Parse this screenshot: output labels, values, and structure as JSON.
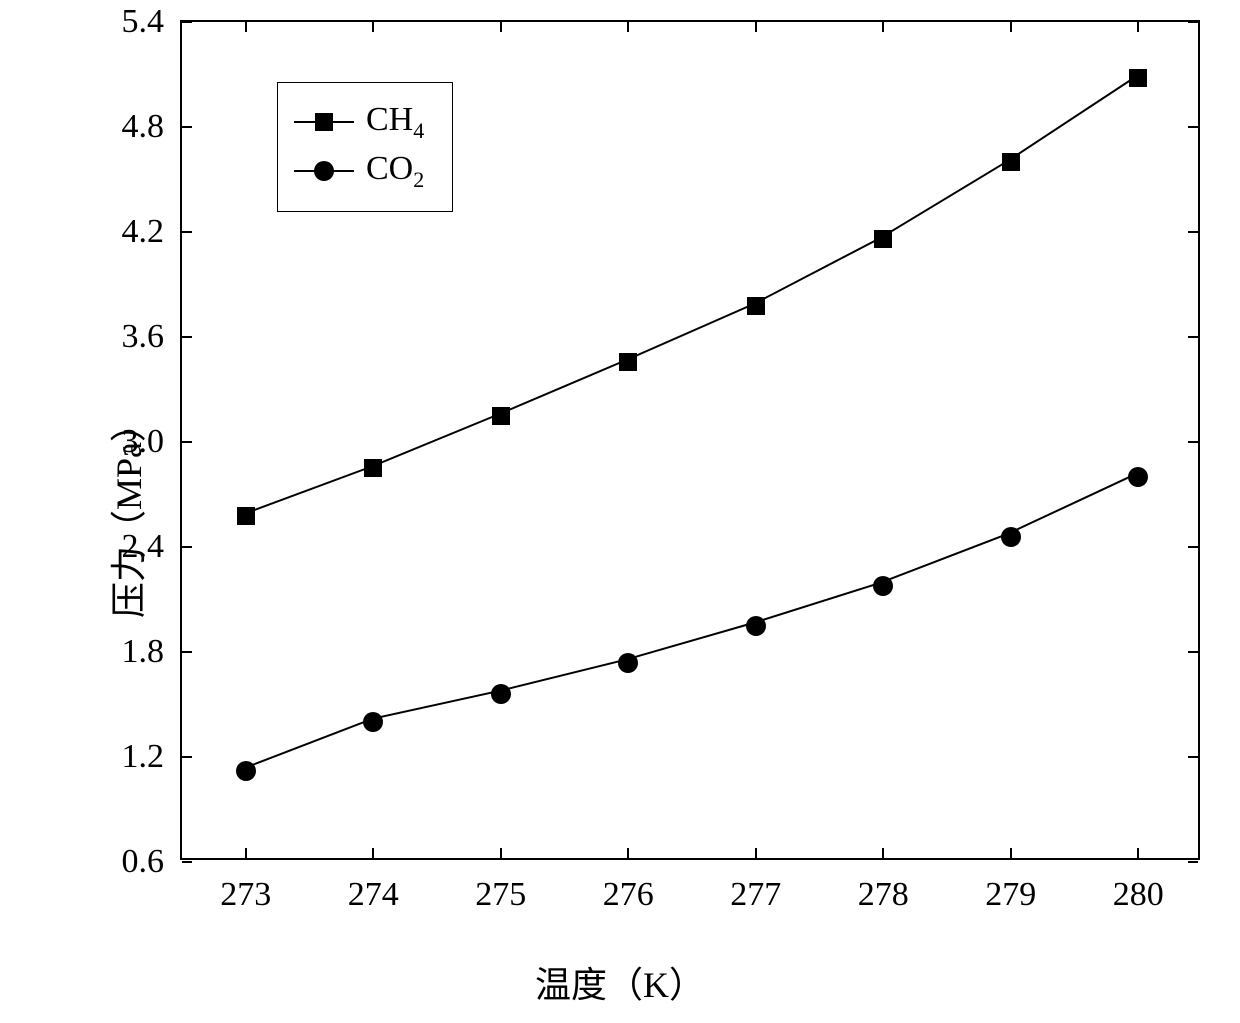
{
  "chart": {
    "type": "line",
    "ylabel": "压力（MPa）",
    "xlabel": "温度（K）",
    "label_fontsize": 36,
    "tick_fontsize": 34,
    "background_color": "#ffffff",
    "axis_color": "#000000",
    "line_color": "#000000",
    "line_width": 2,
    "xlim": [
      272.5,
      280.5
    ],
    "ylim": [
      0.6,
      5.4
    ],
    "xticks": [
      273,
      274,
      275,
      276,
      277,
      278,
      279,
      280
    ],
    "yticks": [
      0.6,
      1.2,
      1.8,
      2.4,
      3.0,
      3.6,
      4.2,
      4.8,
      5.4
    ],
    "ytick_labels": [
      "0.6",
      "1.2",
      "1.8",
      "2.4",
      "3.0",
      "3.6",
      "4.2",
      "4.8",
      "5.4"
    ],
    "series": [
      {
        "name": "CH4",
        "label_html": "CH<sub>4</sub>",
        "marker": "square",
        "marker_size": 18,
        "x": [
          273,
          274,
          275,
          276,
          277,
          278,
          279,
          280
        ],
        "y": [
          2.58,
          2.85,
          3.15,
          3.46,
          3.78,
          4.16,
          4.6,
          5.08
        ]
      },
      {
        "name": "CO2",
        "label_html": "CO<sub>2</sub>",
        "marker": "circle",
        "marker_size": 20,
        "x": [
          273,
          274,
          275,
          276,
          277,
          278,
          279,
          280
        ],
        "y": [
          1.12,
          1.4,
          1.56,
          1.74,
          1.95,
          2.18,
          2.46,
          2.8
        ]
      }
    ],
    "legend": {
      "position": "upper-left",
      "border_color": "#000000",
      "background_color": "#ffffff"
    }
  }
}
